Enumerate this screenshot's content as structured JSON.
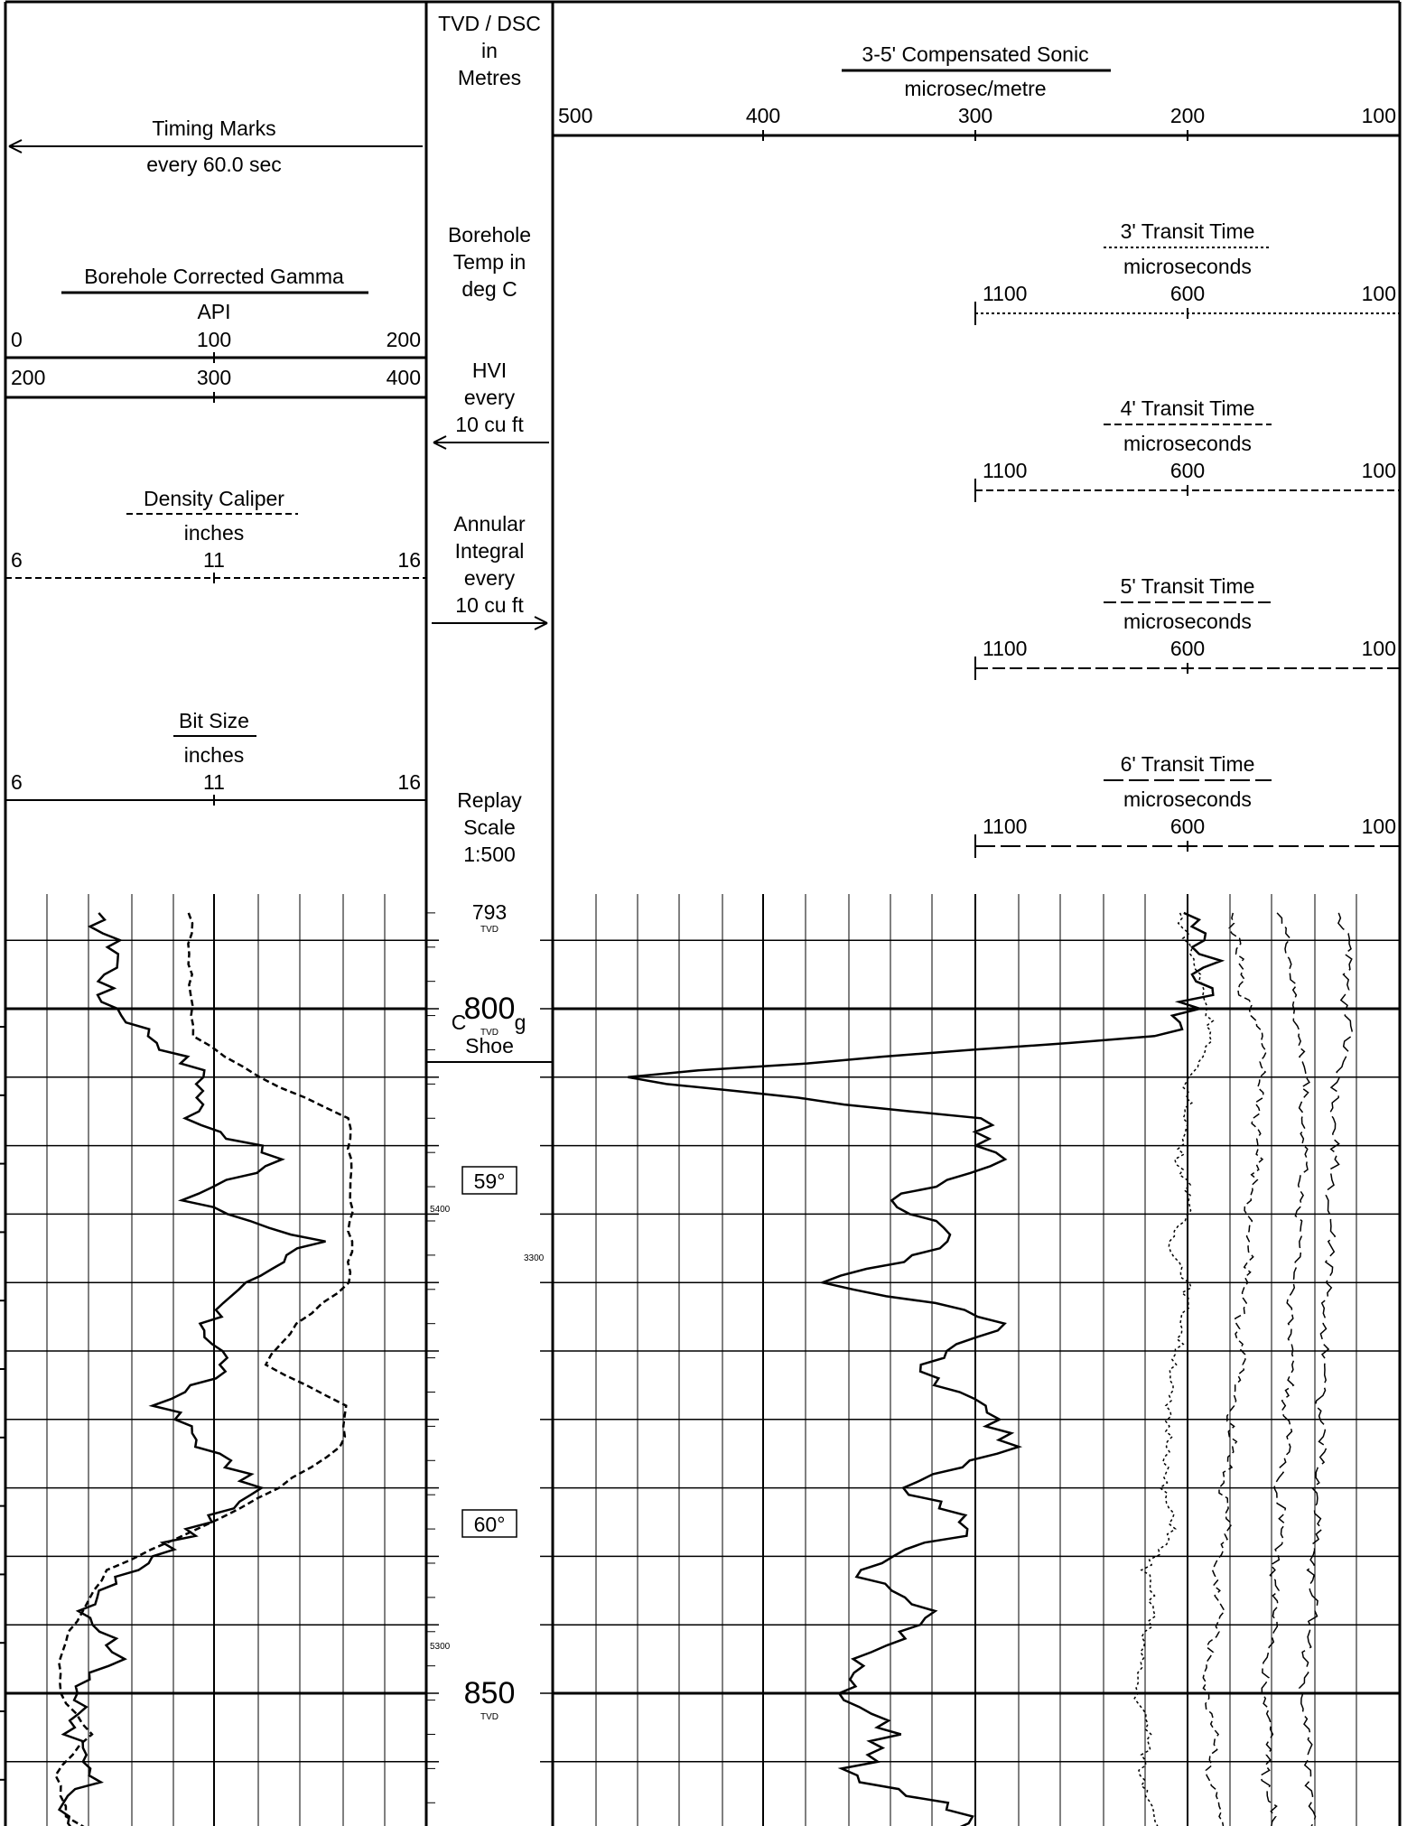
{
  "left_track": {
    "timing": {
      "title": "Timing Marks",
      "subtitle": "every 60.0 sec"
    },
    "gamma": {
      "title": "Borehole Corrected Gamma",
      "unit": "API",
      "scale1": [
        "0",
        "100",
        "200"
      ],
      "scale2": [
        "200",
        "300",
        "400"
      ]
    },
    "caliper": {
      "title": "Density Caliper",
      "unit": "inches",
      "scale": [
        "6",
        "11",
        "16"
      ]
    },
    "bitsize": {
      "title": "Bit Size",
      "unit": "inches",
      "scale": [
        "6",
        "11",
        "16"
      ]
    }
  },
  "depth_track": {
    "header": [
      "TVD / DSC",
      "in",
      "Metres"
    ],
    "temp": [
      "Borehole",
      "Temp in",
      "deg C"
    ],
    "hvi": [
      "HVI",
      "every",
      "10 cu ft"
    ],
    "annular": [
      "Annular",
      "Integral",
      "every",
      "10 cu ft"
    ],
    "replay": [
      "Replay",
      "Scale",
      "1:500"
    ],
    "depths": [
      {
        "value": "793",
        "tag": "TVD"
      },
      {
        "value": "800",
        "tag": "TVD"
      },
      {
        "value": "850",
        "tag": "TVD"
      }
    ],
    "casing": [
      "C",
      "g",
      "Shoe"
    ],
    "temps": [
      "59°",
      "60°"
    ],
    "small_marks": [
      "5400",
      "3300",
      "5300"
    ]
  },
  "right_track": {
    "sonic": {
      "title": "3-5' Compensated Sonic",
      "unit": "microsec/metre",
      "scale": [
        "500",
        "400",
        "300",
        "200",
        "100"
      ]
    },
    "transits": [
      {
        "title": "3' Transit Time",
        "unit": "microseconds",
        "scale": [
          "1100",
          "600",
          "100"
        ]
      },
      {
        "title": "4' Transit Time",
        "unit": "microseconds",
        "scale": [
          "1100",
          "600",
          "100"
        ]
      },
      {
        "title": "5' Transit Time",
        "unit": "microseconds",
        "scale": [
          "1100",
          "600",
          "100"
        ]
      },
      {
        "title": "6' Transit Time",
        "unit": "microseconds",
        "scale": [
          "1100",
          "600",
          "100"
        ]
      }
    ]
  },
  "chart_data": {
    "type": "line",
    "y_axis": {
      "label": "TVD",
      "range": [
        793,
        862
      ],
      "ticks": [
        793,
        800,
        850
      ]
    },
    "series": [
      {
        "name": "Borehole Corrected Gamma",
        "unit": "API",
        "xlim": [
          0,
          200
        ],
        "depth": [
          793,
          796,
          799,
          802,
          805,
          808,
          811,
          814,
          817,
          820,
          823,
          826,
          829,
          832,
          835,
          838,
          841,
          844,
          847,
          850,
          853,
          856,
          859,
          862
        ],
        "values": [
          40,
          55,
          45,
          70,
          95,
          90,
          130,
          85,
          150,
          110,
          95,
          105,
          75,
          95,
          120,
          90,
          60,
          40,
          55,
          35,
          30,
          45,
          25,
          50
        ]
      },
      {
        "name": "Density Caliper",
        "unit": "inches",
        "xlim": [
          6,
          16
        ],
        "depth": [
          793,
          796,
          799,
          802,
          805,
          808,
          811,
          814,
          817,
          820,
          823,
          826,
          829,
          832,
          835,
          838,
          841,
          844,
          847,
          850,
          853,
          856,
          859,
          862
        ],
        "values": [
          10.4,
          10.4,
          10.4,
          10.5,
          12.0,
          14.2,
          14.2,
          14.2,
          14.2,
          14.2,
          12.9,
          12.2,
          14.1,
          14.0,
          12.5,
          10.6,
          8.4,
          7.8,
          7.3,
          7.3,
          8.0,
          7.2,
          7.5,
          8.9
        ]
      },
      {
        "name": "3-5' Compensated Sonic",
        "unit": "microsec/metre",
        "xlim": [
          500,
          100
        ],
        "depth": [
          793,
          796,
          799,
          802,
          805,
          808,
          811,
          814,
          817,
          820,
          823,
          826,
          829,
          832,
          835,
          838,
          841,
          844,
          847,
          850,
          853,
          856,
          859,
          862
        ],
        "values": [
          200,
          190,
          195,
          210,
          470,
          300,
          290,
          340,
          310,
          370,
          280,
          330,
          300,
          280,
          330,
          300,
          360,
          320,
          350,
          360,
          340,
          360,
          300,
          350
        ]
      },
      {
        "name": "3' Transit Time",
        "unit": "microseconds",
        "xlim": [
          1100,
          100
        ],
        "depth": [
          793,
          796,
          799,
          802,
          805,
          808,
          811,
          814,
          817,
          820,
          823,
          826,
          829,
          832,
          835,
          838,
          841,
          844,
          847,
          850,
          853,
          856,
          859,
          862
        ],
        "values": [
          620,
          590,
          560,
          540,
          600,
          600,
          620,
          590,
          640,
          600,
          610,
          630,
          650,
          640,
          660,
          630,
          700,
          680,
          710,
          720,
          690,
          710,
          670,
          690
        ]
      },
      {
        "name": "4' Transit Time",
        "unit": "microseconds",
        "xlim": [
          1100,
          100
        ],
        "depth": [
          793,
          796,
          799,
          802,
          805,
          808,
          811,
          814,
          817,
          820,
          823,
          826,
          829,
          832,
          835,
          838,
          841,
          844,
          847,
          850,
          853,
          856,
          859,
          862
        ],
        "values": [
          500,
          480,
          470,
          420,
          420,
          440,
          430,
          460,
          450,
          460,
          480,
          470,
          500,
          490,
          520,
          500,
          540,
          520,
          550,
          560,
          530,
          550,
          520,
          540
        ]
      },
      {
        "name": "5' Transit Time",
        "unit": "microseconds",
        "xlim": [
          1100,
          100
        ],
        "depth": [
          793,
          796,
          799,
          802,
          805,
          808,
          811,
          814,
          817,
          820,
          823,
          826,
          829,
          832,
          835,
          838,
          841,
          844,
          847,
          850,
          853,
          856,
          859,
          862
        ],
        "values": [
          380,
          360,
          350,
          340,
          320,
          330,
          320,
          340,
          330,
          350,
          360,
          350,
          370,
          360,
          390,
          370,
          400,
          390,
          410,
          420,
          400,
          420,
          390,
          410
        ]
      },
      {
        "name": "6' Transit Time",
        "unit": "microseconds",
        "xlim": [
          1100,
          100
        ],
        "depth": [
          793,
          796,
          799,
          802,
          805,
          808,
          811,
          814,
          817,
          820,
          823,
          826,
          829,
          832,
          835,
          838,
          841,
          844,
          847,
          850,
          853,
          856,
          859,
          862
        ],
        "values": [
          240,
          220,
          230,
          220,
          250,
          260,
          250,
          270,
          260,
          270,
          280,
          270,
          290,
          280,
          300,
          290,
          310,
          300,
          320,
          330,
          310,
          320,
          300,
          320
        ]
      }
    ]
  }
}
